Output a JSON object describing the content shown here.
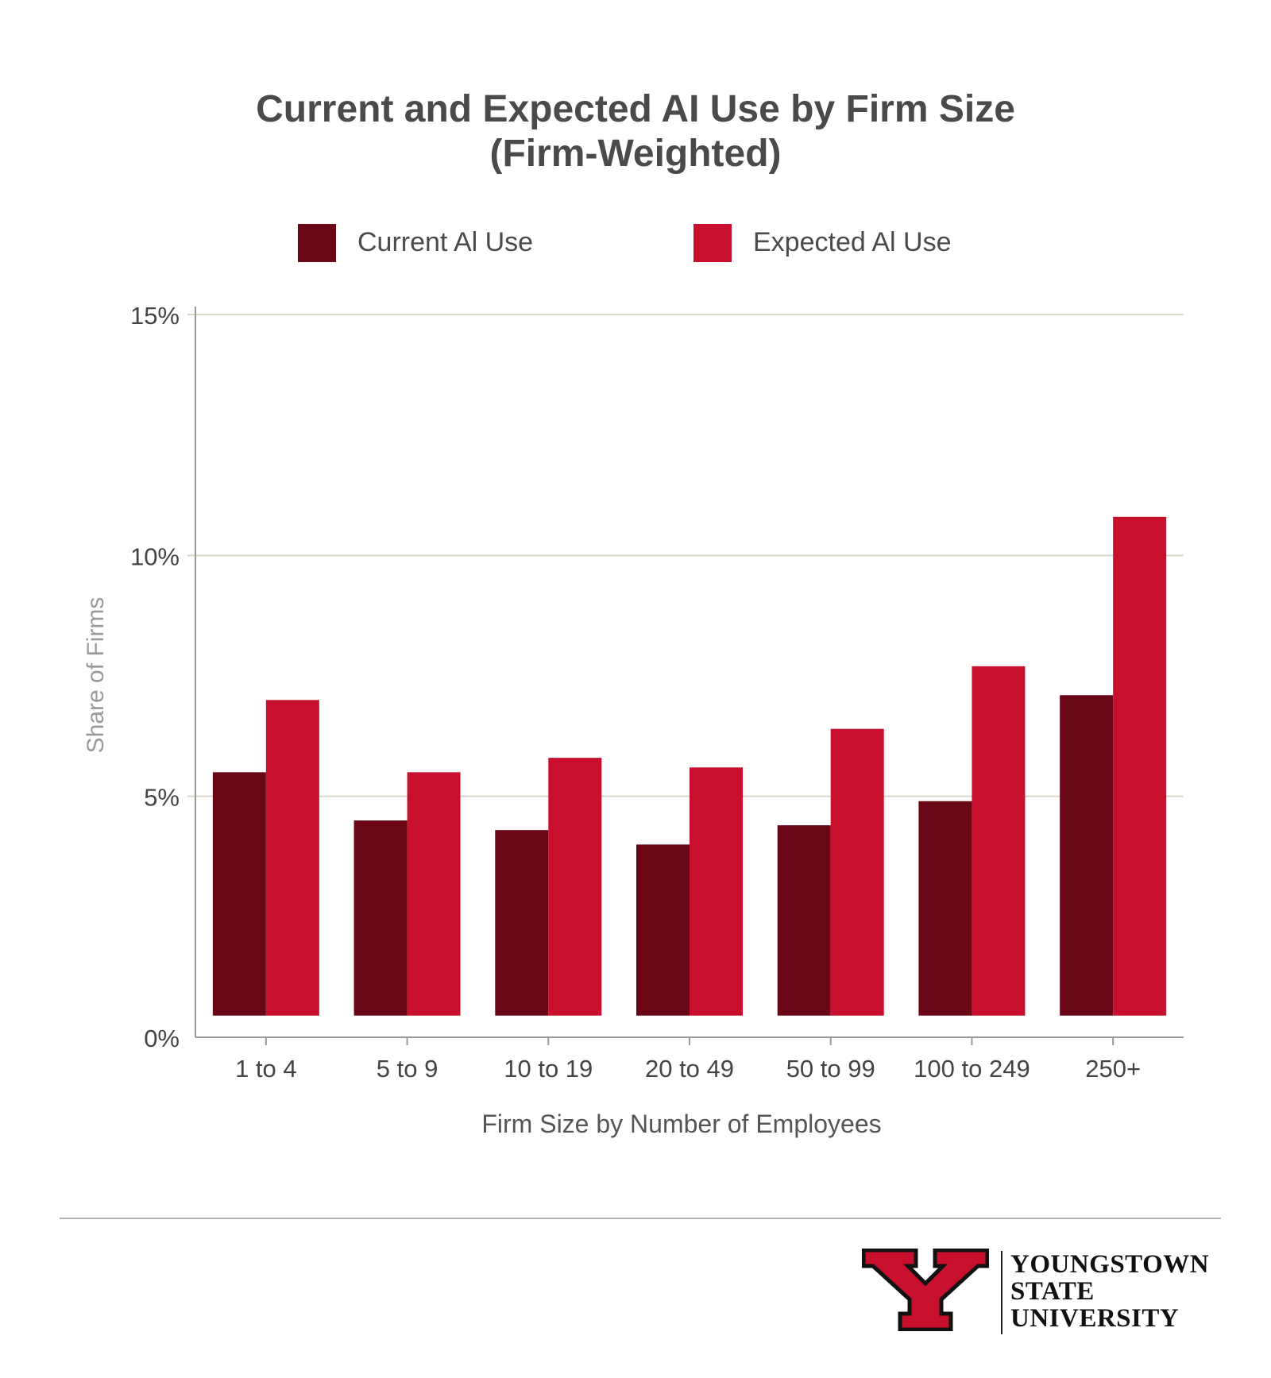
{
  "title": {
    "line1": "Current and Expected AI Use by Firm Size",
    "line2": "(Firm-Weighted)"
  },
  "legend": [
    {
      "label": "Current Al Use",
      "color": "#6a0717"
    },
    {
      "label": "Expected Al Use",
      "color": "#c8102e"
    }
  ],
  "chart_data": {
    "type": "bar",
    "title": "Current and Expected AI Use by Firm Size (Firm-Weighted)",
    "xlabel": "Firm Size by Number of Employees",
    "ylabel": "Share of Firms",
    "categories": [
      "1 to 4",
      "5 to 9",
      "10 to 19",
      "20 to 49",
      "50 to 99",
      "100 to 249",
      "250+"
    ],
    "series": [
      {
        "name": "Current Al Use",
        "color": "#6a0717",
        "values": [
          5.5,
          4.5,
          4.3,
          4.0,
          4.4,
          4.9,
          7.1
        ]
      },
      {
        "name": "Expected Al Use",
        "color": "#c8102e",
        "values": [
          7.0,
          5.5,
          5.8,
          5.6,
          6.4,
          7.7,
          10.8
        ]
      }
    ],
    "ylim": [
      0,
      15
    ],
    "yticks": [
      0,
      5,
      10,
      15
    ],
    "ytick_labels": [
      "0%",
      "5%",
      "10%",
      "15%"
    ],
    "grid": true,
    "legend_position": "top-center"
  },
  "logo": {
    "line1": "YOUNGSTOWN",
    "line2": "STATE",
    "line3": "UNIVERSITY",
    "primary_color": "#c8102e",
    "outline_color": "#111111"
  }
}
